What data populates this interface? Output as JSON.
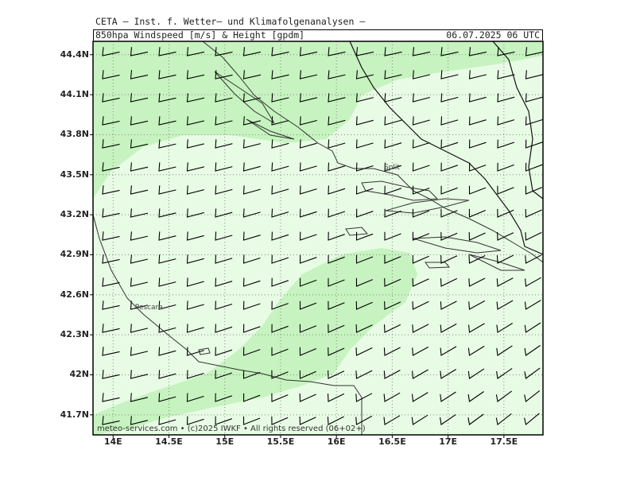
{
  "header": {
    "institute": "CETA – Inst. f. Wetter– und Klimafolgenanalysen –",
    "parameter": "850hpa Windspeed [m/s] & Height [gpdm]",
    "datetime": "06.07.2025 06 UTC"
  },
  "footer": "meteo-services.com • (c)2025 IWKF • All rights reserved (06+02+)",
  "axes": {
    "y_ticks": [
      "44.4N",
      "44.1N",
      "43.8N",
      "43.5N",
      "43.2N",
      "42.9N",
      "42.6N",
      "42.3N",
      "42N",
      "41.7N"
    ],
    "x_ticks": [
      "14E",
      "14.5E",
      "15E",
      "15.5E",
      "16E",
      "16.5E",
      "17E",
      "17.5E"
    ],
    "lat_range": [
      41.55,
      44.5
    ],
    "lon_range": [
      13.82,
      17.85
    ]
  },
  "cities": [
    {
      "name": "Split",
      "lat": 43.51,
      "lon": 16.44
    },
    {
      "name": "Pescara",
      "lat": 42.46,
      "lon": 14.21
    }
  ],
  "colors": {
    "background_field": "#e8fbe5",
    "stronger_wind": "#c6f3bf",
    "barbs": "#000000",
    "coast": "#333333",
    "grid": "#888888"
  },
  "legend": {
    "wind_field": "850hpa Windspeed [m/s]",
    "height_field": "Height [gpdm]"
  }
}
